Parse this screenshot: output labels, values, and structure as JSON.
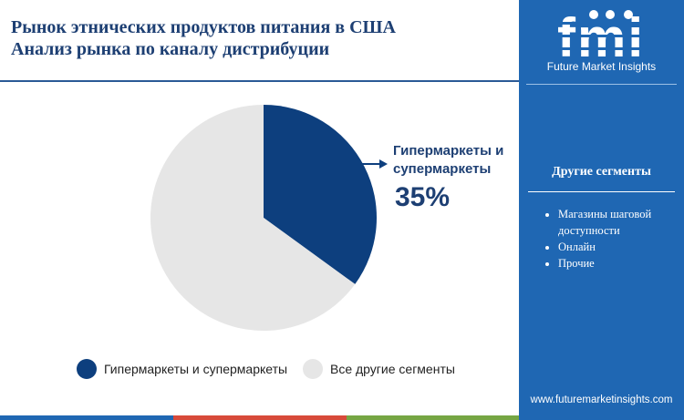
{
  "header": {
    "title_line1": "Рынок этнических продуктов питания в США",
    "title_line2": "Анализ рынка по каналу дистрибуции"
  },
  "brand": {
    "logo_text": "fmi",
    "name": "Future Market Insights",
    "url": "www.futuremarketinsights.com"
  },
  "sidebar": {
    "title": "Другие сегменты",
    "items": [
      "Магазины шаговой доступности",
      "Онлайн",
      "Прочие"
    ]
  },
  "callout": {
    "label": "Гипермаркеты и супермаркеты",
    "value": "35%"
  },
  "colors": {
    "primary": "#0d3f7e",
    "other": "#e6e6e6",
    "panel": "#1f67b3",
    "title": "#1d3f73"
  },
  "chart_data": {
    "type": "pie",
    "categories": [
      "Гипермаркеты и супермаркеты",
      "Все другие сегменты"
    ],
    "values": [
      35,
      65
    ],
    "title": "",
    "legend": "bottom"
  }
}
